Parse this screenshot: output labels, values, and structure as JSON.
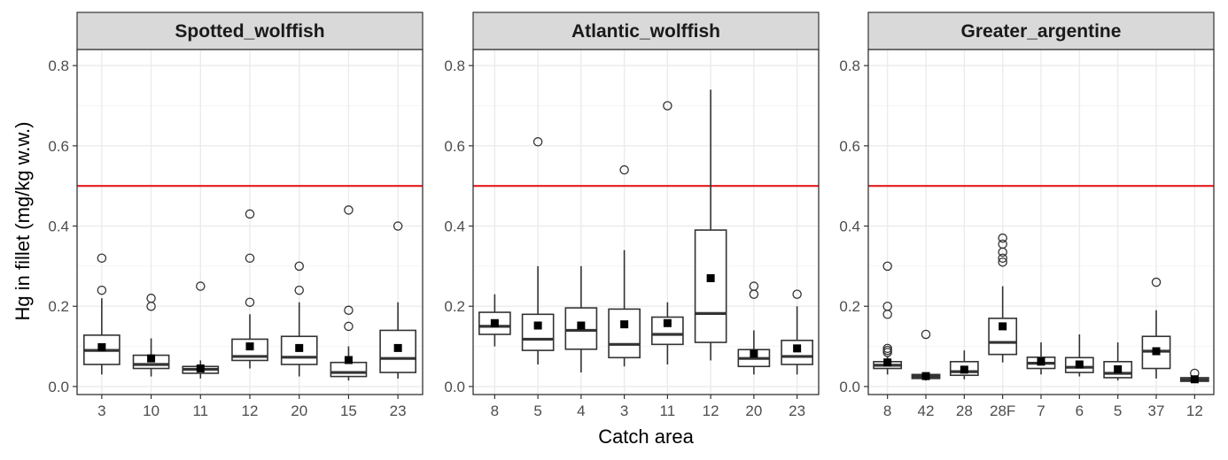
{
  "chart_data": {
    "type": "boxplot",
    "xlabel": "Catch area",
    "ylabel": "Hg in fillet (mg/kg w.w.)",
    "ylim": [
      -0.02,
      0.84
    ],
    "yticks": [
      0.0,
      0.2,
      0.4,
      0.6,
      0.8
    ],
    "ytick_labels": [
      "0.0",
      "0.2",
      "0.4",
      "0.6",
      "0.8"
    ],
    "reference_line": {
      "y": 0.5,
      "color": "#e41a1c"
    },
    "colors": {
      "strip_bg": "#d9d9d9",
      "grid": "#ebebeb",
      "box": "#333333",
      "border": "#333333"
    },
    "facets": [
      {
        "title": "Spotted_wolffish",
        "groups": [
          {
            "label": "3",
            "q1": 0.055,
            "median": 0.09,
            "q3": 0.128,
            "whisker_low": 0.03,
            "whisker_high": 0.22,
            "mean": 0.098,
            "outliers": [
              0.24,
              0.32
            ]
          },
          {
            "label": "10",
            "q1": 0.045,
            "median": 0.055,
            "q3": 0.078,
            "whisker_low": 0.025,
            "whisker_high": 0.12,
            "mean": 0.07,
            "outliers": [
              0.2,
              0.22
            ]
          },
          {
            "label": "11",
            "q1": 0.033,
            "median": 0.043,
            "q3": 0.05,
            "whisker_low": 0.02,
            "whisker_high": 0.065,
            "mean": 0.045,
            "outliers": [
              0.25
            ]
          },
          {
            "label": "12",
            "q1": 0.065,
            "median": 0.075,
            "q3": 0.118,
            "whisker_low": 0.045,
            "whisker_high": 0.18,
            "mean": 0.1,
            "outliers": [
              0.21,
              0.32,
              0.43
            ]
          },
          {
            "label": "20",
            "q1": 0.055,
            "median": 0.073,
            "q3": 0.125,
            "whisker_low": 0.025,
            "whisker_high": 0.21,
            "mean": 0.096,
            "outliers": [
              0.24,
              0.3
            ]
          },
          {
            "label": "15",
            "q1": 0.025,
            "median": 0.035,
            "q3": 0.06,
            "whisker_low": 0.015,
            "whisker_high": 0.1,
            "mean": 0.066,
            "outliers": [
              0.15,
              0.19,
              0.44
            ]
          },
          {
            "label": "23",
            "q1": 0.035,
            "median": 0.07,
            "q3": 0.14,
            "whisker_low": 0.02,
            "whisker_high": 0.21,
            "mean": 0.096,
            "outliers": [
              0.4
            ]
          }
        ]
      },
      {
        "title": "Atlantic_wolffish",
        "groups": [
          {
            "label": "8",
            "q1": 0.13,
            "median": 0.15,
            "q3": 0.185,
            "whisker_low": 0.1,
            "whisker_high": 0.23,
            "mean": 0.158,
            "outliers": []
          },
          {
            "label": "5",
            "q1": 0.09,
            "median": 0.118,
            "q3": 0.18,
            "whisker_low": 0.055,
            "whisker_high": 0.3,
            "mean": 0.152,
            "outliers": [
              0.61
            ]
          },
          {
            "label": "4",
            "q1": 0.093,
            "median": 0.14,
            "q3": 0.196,
            "whisker_low": 0.035,
            "whisker_high": 0.3,
            "mean": 0.152,
            "outliers": []
          },
          {
            "label": "3",
            "q1": 0.072,
            "median": 0.105,
            "q3": 0.193,
            "whisker_low": 0.05,
            "whisker_high": 0.34,
            "mean": 0.155,
            "outliers": [
              0.54
            ]
          },
          {
            "label": "11",
            "q1": 0.105,
            "median": 0.13,
            "q3": 0.173,
            "whisker_low": 0.055,
            "whisker_high": 0.21,
            "mean": 0.158,
            "outliers": [
              0.7
            ]
          },
          {
            "label": "12",
            "q1": 0.11,
            "median": 0.182,
            "q3": 0.39,
            "whisker_low": 0.065,
            "whisker_high": 0.74,
            "mean": 0.27,
            "outliers": []
          },
          {
            "label": "20",
            "q1": 0.05,
            "median": 0.07,
            "q3": 0.092,
            "whisker_low": 0.03,
            "whisker_high": 0.14,
            "mean": 0.082,
            "outliers": [
              0.23,
              0.25
            ]
          },
          {
            "label": "23",
            "q1": 0.055,
            "median": 0.075,
            "q3": 0.115,
            "whisker_low": 0.03,
            "whisker_high": 0.2,
            "mean": 0.095,
            "outliers": [
              0.23
            ]
          }
        ]
      },
      {
        "title": "Greater_argentine",
        "groups": [
          {
            "label": "8",
            "q1": 0.045,
            "median": 0.053,
            "q3": 0.062,
            "whisker_low": 0.03,
            "whisker_high": 0.075,
            "mean": 0.06,
            "outliers": [
              0.085,
              0.09,
              0.095,
              0.18,
              0.2,
              0.3
            ]
          },
          {
            "label": "42",
            "q1": 0.02,
            "median": 0.025,
            "q3": 0.03,
            "whisker_low": 0.015,
            "whisker_high": 0.035,
            "mean": 0.026,
            "outliers": [
              0.13
            ]
          },
          {
            "label": "28",
            "q1": 0.028,
            "median": 0.037,
            "q3": 0.062,
            "whisker_low": 0.018,
            "whisker_high": 0.09,
            "mean": 0.042,
            "outliers": []
          },
          {
            "label": "28F",
            "q1": 0.08,
            "median": 0.11,
            "q3": 0.17,
            "whisker_low": 0.06,
            "whisker_high": 0.25,
            "mean": 0.15,
            "outliers": [
              0.31,
              0.32,
              0.335,
              0.355,
              0.37
            ]
          },
          {
            "label": "7",
            "q1": 0.045,
            "median": 0.058,
            "q3": 0.073,
            "whisker_low": 0.03,
            "whisker_high": 0.11,
            "mean": 0.062,
            "outliers": []
          },
          {
            "label": "6",
            "q1": 0.035,
            "median": 0.048,
            "q3": 0.072,
            "whisker_low": 0.025,
            "whisker_high": 0.13,
            "mean": 0.055,
            "outliers": []
          },
          {
            "label": "5",
            "q1": 0.022,
            "median": 0.033,
            "q3": 0.062,
            "whisker_low": 0.015,
            "whisker_high": 0.11,
            "mean": 0.043,
            "outliers": []
          },
          {
            "label": "37",
            "q1": 0.045,
            "median": 0.088,
            "q3": 0.125,
            "whisker_low": 0.02,
            "whisker_high": 0.19,
            "mean": 0.088,
            "outliers": [
              0.26
            ]
          },
          {
            "label": "12",
            "q1": 0.013,
            "median": 0.017,
            "q3": 0.022,
            "whisker_low": 0.01,
            "whisker_high": 0.027,
            "mean": 0.018,
            "outliers": [
              0.033
            ]
          }
        ]
      }
    ]
  }
}
